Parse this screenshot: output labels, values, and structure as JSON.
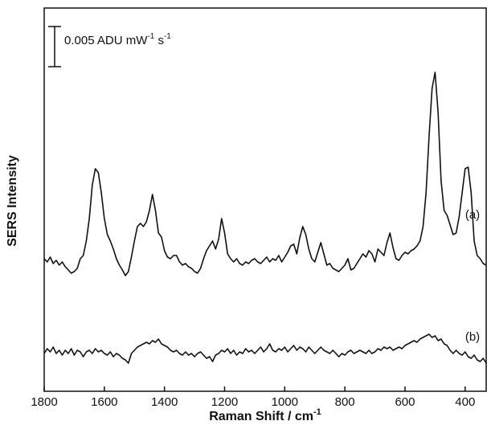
{
  "chart_data": {
    "type": "line",
    "x_label": "Raman Shift / cm",
    "x_label_exp": "-1",
    "y_label": "SERS Intensity",
    "scale_bar": {
      "value": 0.005,
      "text": "0.005 ADU mW",
      "exp1": "-1",
      "text2": " s",
      "exp2": "-1"
    },
    "xlim": [
      1800,
      330
    ],
    "xticks": [
      1800,
      1600,
      1400,
      1200,
      1000,
      800,
      600,
      400
    ],
    "ylim": [
      0,
      0.0475
    ],
    "x": [
      1800,
      1790,
      1780,
      1770,
      1760,
      1750,
      1740,
      1730,
      1720,
      1710,
      1700,
      1690,
      1680,
      1670,
      1660,
      1650,
      1640,
      1630,
      1620,
      1610,
      1600,
      1590,
      1580,
      1570,
      1560,
      1550,
      1540,
      1530,
      1520,
      1510,
      1500,
      1490,
      1480,
      1470,
      1460,
      1450,
      1440,
      1430,
      1420,
      1410,
      1400,
      1390,
      1380,
      1370,
      1360,
      1350,
      1340,
      1330,
      1320,
      1310,
      1300,
      1290,
      1280,
      1270,
      1260,
      1250,
      1240,
      1230,
      1220,
      1210,
      1200,
      1190,
      1180,
      1170,
      1160,
      1150,
      1140,
      1130,
      1120,
      1110,
      1100,
      1090,
      1080,
      1070,
      1060,
      1050,
      1040,
      1030,
      1020,
      1010,
      1000,
      990,
      980,
      970,
      960,
      950,
      940,
      930,
      920,
      910,
      900,
      890,
      880,
      870,
      860,
      850,
      840,
      830,
      820,
      810,
      800,
      790,
      780,
      770,
      760,
      750,
      740,
      730,
      720,
      710,
      700,
      690,
      680,
      670,
      660,
      650,
      640,
      630,
      620,
      610,
      600,
      590,
      580,
      570,
      560,
      550,
      540,
      530,
      520,
      510,
      500,
      490,
      480,
      470,
      460,
      450,
      440,
      430,
      420,
      410,
      400,
      390,
      380,
      370,
      360,
      350,
      340,
      330
    ],
    "series": [
      {
        "name": "(a)",
        "color": "#111111",
        "values": [
          0.0165,
          0.0161,
          0.0167,
          0.0159,
          0.0163,
          0.0157,
          0.0161,
          0.0155,
          0.0151,
          0.0147,
          0.0149,
          0.0153,
          0.0165,
          0.0169,
          0.0187,
          0.0215,
          0.0257,
          0.0277,
          0.0272,
          0.0247,
          0.0215,
          0.0195,
          0.0187,
          0.0177,
          0.0165,
          0.0157,
          0.0151,
          0.0144,
          0.0149,
          0.0167,
          0.0187,
          0.0205,
          0.0209,
          0.0205,
          0.0211,
          0.0225,
          0.0245,
          0.0225,
          0.0197,
          0.0192,
          0.0175,
          0.0167,
          0.0165,
          0.0169,
          0.0169,
          0.0161,
          0.0157,
          0.0159,
          0.0155,
          0.0153,
          0.0149,
          0.0147,
          0.0153,
          0.0165,
          0.0175,
          0.0181,
          0.0187,
          0.0177,
          0.0189,
          0.0215,
          0.0197,
          0.0171,
          0.0165,
          0.0161,
          0.0165,
          0.0159,
          0.0157,
          0.0161,
          0.0159,
          0.0163,
          0.0165,
          0.0161,
          0.0159,
          0.0163,
          0.0167,
          0.0161,
          0.0165,
          0.0163,
          0.0169,
          0.0161,
          0.0167,
          0.0173,
          0.0181,
          0.0183,
          0.0171,
          0.0191,
          0.0205,
          0.0195,
          0.0177,
          0.0165,
          0.0161,
          0.0173,
          0.0185,
          0.0171,
          0.0157,
          0.0159,
          0.0153,
          0.0151,
          0.0149,
          0.0153,
          0.0157,
          0.0165,
          0.0151,
          0.0153,
          0.0159,
          0.0165,
          0.0171,
          0.0167,
          0.0175,
          0.0171,
          0.0161,
          0.0177,
          0.0173,
          0.0169,
          0.0185,
          0.0197,
          0.0179,
          0.0165,
          0.0163,
          0.0169,
          0.0173,
          0.0171,
          0.0175,
          0.0177,
          0.0181,
          0.0187,
          0.0205,
          0.0247,
          0.0317,
          0.0377,
          0.0397,
          0.0347,
          0.0262,
          0.0225,
          0.0219,
          0.0207,
          0.0195,
          0.0197,
          0.0217,
          0.0247,
          0.0277,
          0.0279,
          0.0247,
          0.0187,
          0.0169,
          0.0165,
          0.0159,
          0.0157
        ]
      },
      {
        "name": "(b)",
        "color": "#111111",
        "values": [
          0.0047,
          0.0053,
          0.0049,
          0.0055,
          0.0047,
          0.0051,
          0.0045,
          0.0051,
          0.0047,
          0.0053,
          0.0045,
          0.0051,
          0.0049,
          0.0043,
          0.0049,
          0.0051,
          0.0047,
          0.0053,
          0.0049,
          0.0051,
          0.0047,
          0.0045,
          0.0049,
          0.0043,
          0.0047,
          0.0045,
          0.0041,
          0.0039,
          0.0035,
          0.0047,
          0.0051,
          0.0055,
          0.0057,
          0.0059,
          0.0061,
          0.0059,
          0.0063,
          0.0061,
          0.0065,
          0.0059,
          0.0057,
          0.0055,
          0.0051,
          0.0049,
          0.0051,
          0.0047,
          0.0045,
          0.0049,
          0.0045,
          0.0047,
          0.0043,
          0.0047,
          0.0049,
          0.0045,
          0.0041,
          0.0043,
          0.0037,
          0.0045,
          0.0047,
          0.0051,
          0.0049,
          0.0053,
          0.0047,
          0.0051,
          0.0045,
          0.0049,
          0.0047,
          0.0053,
          0.0049,
          0.0051,
          0.0047,
          0.0051,
          0.0055,
          0.0049,
          0.0053,
          0.0059,
          0.0051,
          0.0049,
          0.0053,
          0.0051,
          0.0055,
          0.0049,
          0.0053,
          0.0057,
          0.0051,
          0.0055,
          0.0053,
          0.0049,
          0.0055,
          0.0051,
          0.0047,
          0.0051,
          0.0055,
          0.0051,
          0.0049,
          0.0047,
          0.0051,
          0.0047,
          0.0043,
          0.0047,
          0.0045,
          0.0049,
          0.0051,
          0.0047,
          0.0049,
          0.0051,
          0.0049,
          0.0047,
          0.0051,
          0.0047,
          0.0049,
          0.0053,
          0.0051,
          0.0055,
          0.0053,
          0.0055,
          0.0051,
          0.0053,
          0.0055,
          0.0053,
          0.0057,
          0.0059,
          0.0061,
          0.0063,
          0.0061,
          0.0065,
          0.0067,
          0.0069,
          0.0071,
          0.0067,
          0.0069,
          0.0063,
          0.0065,
          0.0059,
          0.0057,
          0.0051,
          0.0047,
          0.0051,
          0.0047,
          0.0045,
          0.0049,
          0.0043,
          0.0041,
          0.0045,
          0.0039,
          0.0037,
          0.0041,
          0.0035
        ]
      }
    ]
  }
}
